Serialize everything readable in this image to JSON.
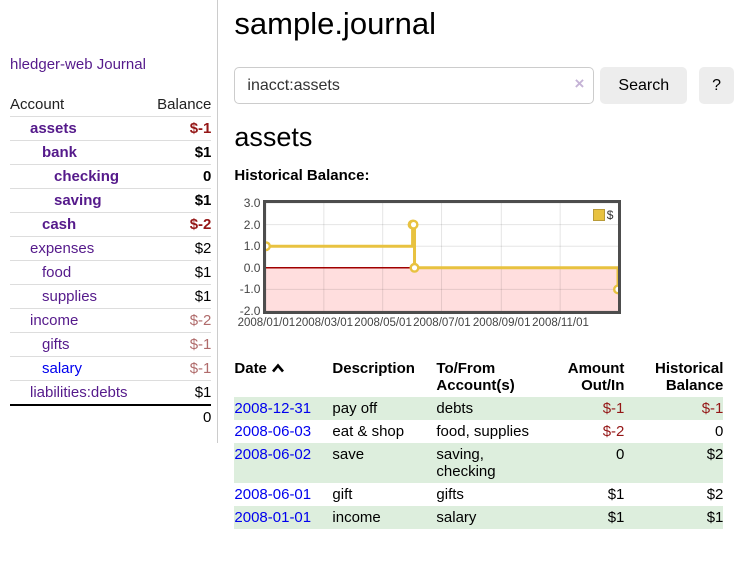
{
  "app": {
    "title": "hledger-web",
    "nav_journal_label": "Journal"
  },
  "sidebar": {
    "accounts_header": {
      "account": "Account",
      "balance": "Balance"
    },
    "accounts": [
      {
        "name": "assets",
        "balance": "$-1",
        "depth": 1,
        "bold": true,
        "negative": "strong",
        "link_style": "visited"
      },
      {
        "name": "bank",
        "balance": "$1",
        "depth": 2,
        "bold": true,
        "negative": null,
        "link_style": "visited"
      },
      {
        "name": "checking",
        "balance": "0",
        "depth": 3,
        "bold": true,
        "negative": null,
        "link_style": "visited"
      },
      {
        "name": "saving",
        "balance": "$1",
        "depth": 3,
        "bold": true,
        "negative": null,
        "link_style": "visited"
      },
      {
        "name": "cash",
        "balance": "$-2",
        "depth": 2,
        "bold": true,
        "negative": "strong",
        "link_style": "visited"
      },
      {
        "name": "expenses",
        "balance": "$2",
        "depth": 1,
        "bold": false,
        "negative": null,
        "link_style": "visited"
      },
      {
        "name": "food",
        "balance": "$1",
        "depth": 2,
        "bold": false,
        "negative": null,
        "link_style": "visited"
      },
      {
        "name": "supplies",
        "balance": "$1",
        "depth": 2,
        "bold": false,
        "negative": null,
        "link_style": "visited"
      },
      {
        "name": "income",
        "balance": "$-2",
        "depth": 1,
        "bold": false,
        "negative": "muted",
        "link_style": "visited"
      },
      {
        "name": "gifts",
        "balance": "$-1",
        "depth": 2,
        "bold": false,
        "negative": "muted",
        "link_style": "visited"
      },
      {
        "name": "salary",
        "balance": "$-1",
        "depth": 2,
        "bold": false,
        "negative": "muted",
        "link_style": "unvisited"
      },
      {
        "name": "liabilities:debts",
        "balance": "$1",
        "depth": 1,
        "bold": false,
        "negative": null,
        "link_style": "visited"
      }
    ],
    "total_balance": "0"
  },
  "header": {
    "title": "sample.journal"
  },
  "search": {
    "value": "inacct:assets",
    "clear_icon": "×",
    "button_label": "Search",
    "help_label": "?"
  },
  "account_page": {
    "heading": "assets"
  },
  "chart_data": {
    "type": "line",
    "style": "steps-with-markers",
    "title": "Historical Balance:",
    "series": [
      {
        "name": "$",
        "points": [
          [
            "2008-01-01",
            1
          ],
          [
            "2008-06-01",
            2
          ],
          [
            "2008-06-02",
            2
          ],
          [
            "2008-06-03",
            0
          ],
          [
            "2008-12-31",
            -1
          ]
        ]
      }
    ],
    "x_range": [
      "2008-01-01",
      "2008-12-31"
    ],
    "ylim": [
      -2.0,
      3.0
    ],
    "y_ticks": [
      3.0,
      2.0,
      1.0,
      0.0,
      -1.0,
      -2.0
    ],
    "x_ticks": [
      {
        "date": "2008-01-01",
        "label": "2008/01/01"
      },
      {
        "date": "2008-03-01",
        "label": "2008/03/01"
      },
      {
        "date": "2008-05-01",
        "label": "2008/05/01"
      },
      {
        "date": "2008-07-01",
        "label": "2008/07/01"
      },
      {
        "date": "2008-09-01",
        "label": "2008/09/01"
      },
      {
        "date": "2008-11-01",
        "label": "2008/11/01"
      }
    ],
    "legend": {
      "position": "top-right",
      "label": "$"
    },
    "grid": true,
    "colors": {
      "line": "#e8c240",
      "marker_fill": "#ffffff",
      "negative_region": "#ffdede",
      "zero_line": "#a00000",
      "gridline": "rgba(0,0,0,0.10)"
    }
  },
  "register": {
    "columns": [
      "Date",
      "Description",
      "To/From Account(s)",
      "Amount Out/In",
      "Historical Balance"
    ],
    "sort": {
      "column": "Date",
      "direction": "ascending"
    },
    "rows": [
      {
        "date": "2008-12-31",
        "description": "pay off",
        "accounts": "debts",
        "amount": "$-1",
        "amount_negative": true,
        "balance": "$-1",
        "balance_negative": true
      },
      {
        "date": "2008-06-03",
        "description": "eat & shop",
        "accounts": "food, supplies",
        "amount": "$-2",
        "amount_negative": true,
        "balance": "0",
        "balance_negative": false
      },
      {
        "date": "2008-06-02",
        "description": "save",
        "accounts": "saving, checking",
        "amount": "0",
        "amount_negative": false,
        "balance": "$2",
        "balance_negative": false
      },
      {
        "date": "2008-06-01",
        "description": "gift",
        "accounts": "gifts",
        "amount": "$1",
        "amount_negative": false,
        "balance": "$2",
        "balance_negative": false
      },
      {
        "date": "2008-01-01",
        "description": "income",
        "accounts": "salary",
        "amount": "$1",
        "amount_negative": false,
        "balance": "$1",
        "balance_negative": false
      }
    ]
  }
}
